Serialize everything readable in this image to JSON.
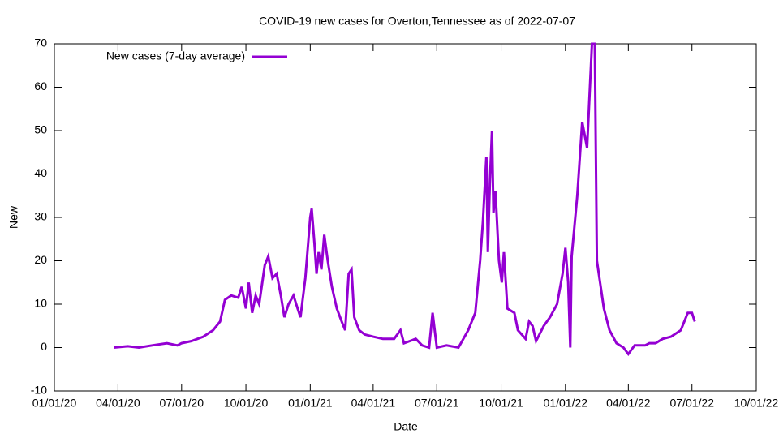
{
  "chart_data": {
    "type": "line",
    "title": "COVID-19 new cases for Overton,Tennessee as of 2022-07-07",
    "x_label": "Date",
    "y_label": "New",
    "xlim": [
      "01/01/20",
      "10/01/22"
    ],
    "xticks": [
      "01/01/20",
      "04/01/20",
      "07/01/20",
      "10/01/20",
      "01/01/21",
      "04/01/21",
      "07/01/21",
      "10/01/21",
      "01/01/22",
      "04/01/22",
      "07/01/22",
      "10/01/22"
    ],
    "ylim": [
      -10,
      70
    ],
    "yticks": [
      -10,
      0,
      10,
      20,
      30,
      40,
      50,
      60,
      70
    ],
    "grid": false,
    "legend": "top-left",
    "x": [
      "03/26/20",
      "04/15/20",
      "05/01/20",
      "05/20/20",
      "06/10/20",
      "06/25/20",
      "07/01/20",
      "07/15/20",
      "08/01/20",
      "08/15/20",
      "08/25/20",
      "09/01/20",
      "09/10/20",
      "09/20/20",
      "09/25/20",
      "10/01/20",
      "10/05/20",
      "10/10/20",
      "10/15/20",
      "10/20/20",
      "10/28/20",
      "11/02/20",
      "11/08/20",
      "11/14/20",
      "11/20/20",
      "11/25/20",
      "12/01/20",
      "12/08/20",
      "12/14/20",
      "12/18/20",
      "12/25/20",
      "01/01/21",
      "01/03/21",
      "01/07/21",
      "01/10/21",
      "01/13/21",
      "01/17/21",
      "01/21/21",
      "01/26/21",
      "02/01/21",
      "02/08/21",
      "02/15/21",
      "02/20/21",
      "02/25/21",
      "03/01/21",
      "03/05/21",
      "03/12/21",
      "03/20/21",
      "04/01/21",
      "04/15/21",
      "05/01/21",
      "05/10/21",
      "05/15/21",
      "06/01/21",
      "06/10/21",
      "06/20/21",
      "06/25/21",
      "07/01/21",
      "07/15/21",
      "08/01/21",
      "08/15/21",
      "08/25/21",
      "09/01/21",
      "09/05/21",
      "09/10/21",
      "09/12/21",
      "09/15/21",
      "09/18/21",
      "09/20/21",
      "09/23/21",
      "09/28/21",
      "10/02/21",
      "10/05/21",
      "10/10/21",
      "10/20/21",
      "10/25/21",
      "11/05/21",
      "11/10/21",
      "11/15/21",
      "11/20/21",
      "12/01/21",
      "12/10/21",
      "12/20/21",
      "12/28/21",
      "01/01/22",
      "01/05/22",
      "01/08/22",
      "01/10/22",
      "01/18/22",
      "01/25/22",
      "02/01/22",
      "02/08/22",
      "02/12/22",
      "02/15/22",
      "02/25/22",
      "03/05/22",
      "03/15/22",
      "03/25/22",
      "04/01/22",
      "04/10/22",
      "04/25/22",
      "05/01/22",
      "05/10/22",
      "05/20/22",
      "06/01/22",
      "06/15/22",
      "06/25/22",
      "07/01/22",
      "07/05/22"
    ],
    "series": [
      {
        "name": "New cases (7-day average)",
        "color": "#9400d3",
        "values": [
          0,
          0.3,
          0,
          0.5,
          1,
          0.5,
          1,
          1.5,
          2.5,
          4,
          6,
          11,
          12,
          11.5,
          14,
          9,
          15,
          8,
          12,
          10,
          19,
          21,
          16,
          17,
          12,
          7,
          10,
          12,
          9,
          7,
          16,
          30,
          32,
          24,
          17,
          22,
          18,
          26,
          20,
          14,
          9,
          6,
          4,
          17,
          18,
          7,
          4,
          3,
          2.5,
          2,
          2,
          4,
          1,
          2,
          0.5,
          0,
          8,
          0,
          0.5,
          0,
          4,
          8,
          20,
          29,
          44,
          22,
          38,
          50,
          31,
          36,
          20,
          15,
          22,
          9,
          8,
          4,
          2,
          6,
          5,
          1.5,
          5,
          7,
          10,
          17,
          23,
          15,
          0,
          21,
          35,
          52,
          46,
          70,
          70,
          20,
          9,
          4,
          1,
          0,
          -1.5,
          0.5,
          0.5,
          1,
          1,
          2,
          2.5,
          4,
          8,
          8,
          6
        ]
      }
    ]
  }
}
